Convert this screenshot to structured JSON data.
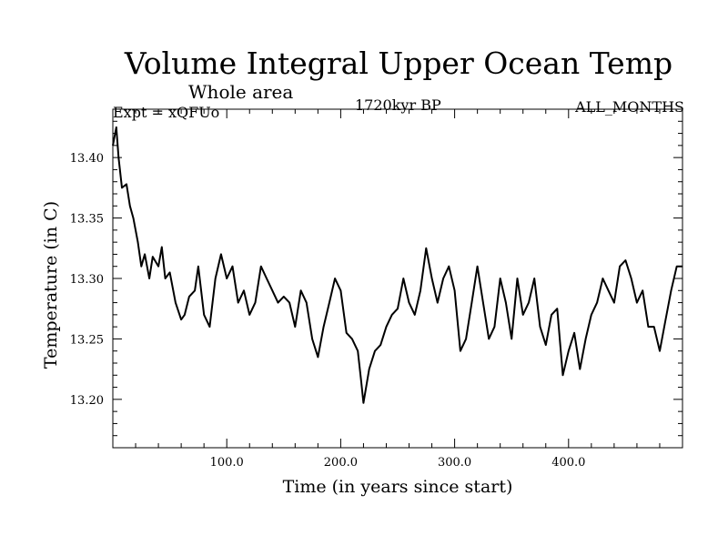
{
  "chart_data": {
    "type": "line",
    "title": "Volume Integral Upper Ocean Temp",
    "subtitle": "Whole area",
    "experiment": "Expt = xQFUo",
    "period": "1720kyr BP",
    "months": "ALL_MONTHS",
    "xlabel": "Time (in years since start)",
    "ylabel": "Temperature (in C)",
    "xlim": [
      0,
      500
    ],
    "ylim": [
      13.16,
      13.44
    ],
    "xticks": [
      100,
      200,
      300,
      400
    ],
    "xtick_labels": [
      "100.0",
      "200.0",
      "300.0",
      "400.0"
    ],
    "yticks": [
      13.2,
      13.25,
      13.3,
      13.35,
      13.4
    ],
    "ytick_labels": [
      "13.20",
      "13.25",
      "13.30",
      "13.35",
      "13.40"
    ],
    "grid": false,
    "series": [
      {
        "name": "Volume Integral Upper Ocean Temp",
        "x": [
          0,
          3,
          5,
          8,
          12,
          15,
          18,
          22,
          25,
          28,
          32,
          35,
          40,
          43,
          46,
          50,
          55,
          60,
          63,
          67,
          72,
          75,
          80,
          85,
          90,
          95,
          100,
          105,
          110,
          115,
          120,
          125,
          130,
          135,
          140,
          145,
          150,
          155,
          160,
          165,
          170,
          175,
          180,
          185,
          190,
          195,
          200,
          205,
          210,
          215,
          218,
          220,
          225,
          230,
          235,
          240,
          245,
          250,
          255,
          260,
          265,
          270,
          275,
          280,
          285,
          290,
          295,
          300,
          305,
          310,
          315,
          320,
          325,
          330,
          335,
          340,
          345,
          350,
          355,
          360,
          365,
          370,
          375,
          380,
          385,
          390,
          395,
          400,
          405,
          410,
          415,
          420,
          425,
          430,
          435,
          440,
          445,
          450,
          455,
          460,
          465,
          470,
          475,
          480,
          485,
          490,
          495,
          500
        ],
        "values": [
          13.41,
          13.425,
          13.4,
          13.375,
          13.378,
          13.36,
          13.35,
          13.33,
          13.31,
          13.32,
          13.3,
          13.318,
          13.31,
          13.326,
          13.3,
          13.305,
          13.28,
          13.266,
          13.27,
          13.285,
          13.29,
          13.31,
          13.27,
          13.26,
          13.3,
          13.32,
          13.3,
          13.31,
          13.28,
          13.29,
          13.27,
          13.28,
          13.31,
          13.3,
          13.29,
          13.28,
          13.285,
          13.28,
          13.26,
          13.29,
          13.28,
          13.25,
          13.235,
          13.26,
          13.28,
          13.3,
          13.29,
          13.255,
          13.25,
          13.24,
          13.215,
          13.197,
          13.225,
          13.24,
          13.245,
          13.26,
          13.27,
          13.275,
          13.3,
          13.28,
          13.27,
          13.29,
          13.325,
          13.3,
          13.28,
          13.3,
          13.31,
          13.29,
          13.24,
          13.25,
          13.28,
          13.31,
          13.28,
          13.25,
          13.26,
          13.3,
          13.28,
          13.25,
          13.3,
          13.27,
          13.28,
          13.3,
          13.26,
          13.245,
          13.27,
          13.275,
          13.22,
          13.24,
          13.255,
          13.225,
          13.25,
          13.27,
          13.28,
          13.3,
          13.29,
          13.28,
          13.31,
          13.315,
          13.3,
          13.28,
          13.29,
          13.26,
          13.26,
          13.24,
          13.265,
          13.29,
          13.31,
          13.31
        ]
      }
    ]
  }
}
